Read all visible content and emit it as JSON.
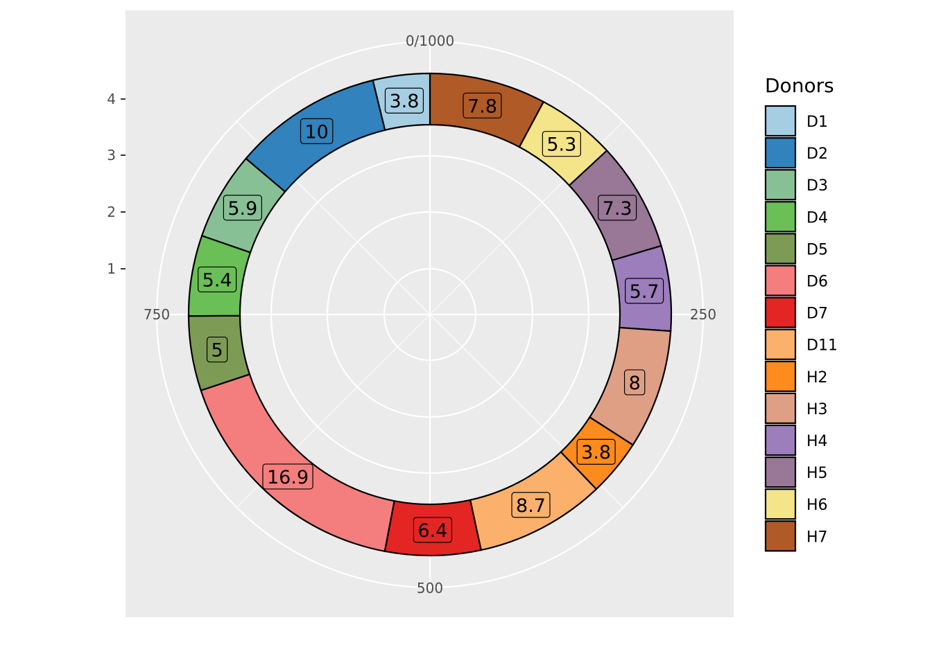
{
  "chart_data": {
    "type": "pie",
    "style": "donut",
    "angle_scale": {
      "range": [
        0,
        1000
      ],
      "tick_labels": [
        "0/1000",
        "250",
        "500",
        "750"
      ]
    },
    "radial_axis": {
      "tick_labels": [
        "1",
        "2",
        "3",
        "4"
      ],
      "ring_range": [
        3.4,
        4.3
      ]
    },
    "grid": true,
    "panel_background": "#ebebeb",
    "legend": {
      "title": "Donors",
      "position": "right",
      "entries": [
        {
          "name": "D1",
          "color": "#a6cee3"
        },
        {
          "name": "D2",
          "color": "#3182bd"
        },
        {
          "name": "D3",
          "color": "#88c095"
        },
        {
          "name": "D4",
          "color": "#6abf57"
        },
        {
          "name": "D5",
          "color": "#7d9b55"
        },
        {
          "name": "D6",
          "color": "#f47e7e"
        },
        {
          "name": "D7",
          "color": "#e32624"
        },
        {
          "name": "D11",
          "color": "#fbb16c"
        },
        {
          "name": "H2",
          "color": "#fd8b1e"
        },
        {
          "name": "H3",
          "color": "#df9f85"
        },
        {
          "name": "H4",
          "color": "#9d7ebd"
        },
        {
          "name": "H5",
          "color": "#987896"
        },
        {
          "name": "H6",
          "color": "#f4e48a"
        },
        {
          "name": "H7",
          "color": "#b05a28"
        }
      ]
    },
    "segments": [
      {
        "name": "H7",
        "value": 7.8,
        "label": "7.8"
      },
      {
        "name": "H6",
        "value": 5.3,
        "label": "5.3"
      },
      {
        "name": "H5",
        "value": 7.3,
        "label": "7.3"
      },
      {
        "name": "H4",
        "value": 5.7,
        "label": "5.7"
      },
      {
        "name": "H3",
        "value": 8,
        "label": "8"
      },
      {
        "name": "H2",
        "value": 3.8,
        "label": "3.8"
      },
      {
        "name": "D11",
        "value": 8.7,
        "label": "8.7"
      },
      {
        "name": "D7",
        "value": 6.4,
        "label": "6.4"
      },
      {
        "name": "D6",
        "value": 16.9,
        "label": "16.9"
      },
      {
        "name": "D5",
        "value": 5,
        "label": "5"
      },
      {
        "name": "D4",
        "value": 5.4,
        "label": "5.4"
      },
      {
        "name": "D3",
        "value": 5.9,
        "label": "5.9"
      },
      {
        "name": "D2",
        "value": 10,
        "label": "10"
      },
      {
        "name": "D1",
        "value": 3.8,
        "label": "3.8"
      }
    ]
  }
}
